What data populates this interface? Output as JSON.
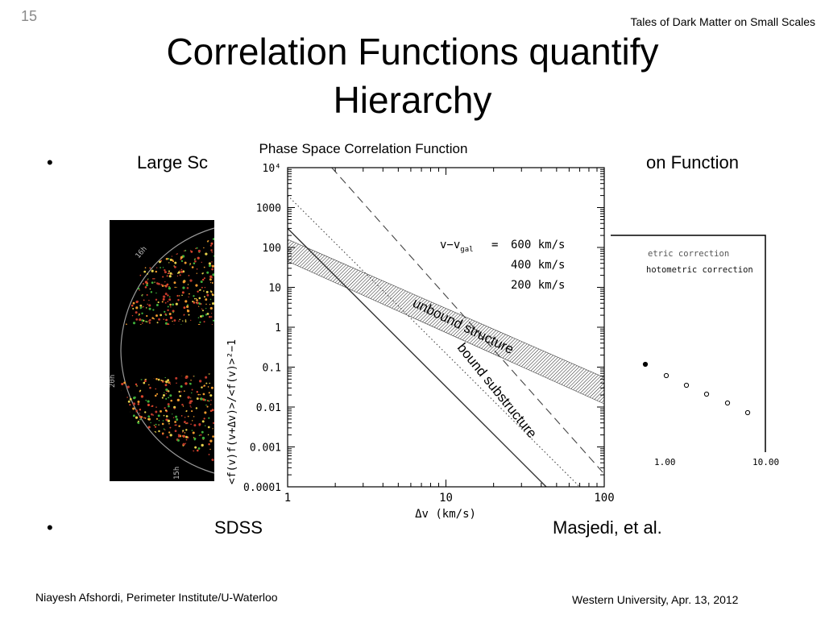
{
  "slide": {
    "number": "15",
    "header_right": "Tales of Dark Matter on Small Scales",
    "title": "Correlation Functions quantify Hierarchy",
    "bullets": [
      {
        "symbol": "•",
        "left_text": "Large Sc",
        "right_text": "on Function"
      },
      {
        "symbol": "•",
        "left_text": "SDSS",
        "right_text": "Masjedi, et al."
      }
    ],
    "footer_left": "Niayesh Afshordi, Perimeter Institute/U-Waterloo",
    "footer_right": "Western University, Apr. 13, 2012"
  },
  "background_images": {
    "survey_labels": [
      "16h",
      "20h",
      "15h"
    ],
    "right_plot": {
      "legend": [
        "etric correction",
        "hotometric correction"
      ],
      "x_tick_labels": [
        "1.00",
        "10.00"
      ]
    }
  },
  "chart_data": {
    "type": "line",
    "title": "Phase Space Correlation Function",
    "xlabel": "Δv (km/s)",
    "ylabel": "<f(v)f(v+Δv)>/<f(v)>²−1",
    "xscale": "log",
    "yscale": "log",
    "xlim": [
      1,
      100
    ],
    "ylim": [
      0.0001,
      10000
    ],
    "x_ticks": [
      {
        "value": 1,
        "label": "1"
      },
      {
        "value": 10,
        "label": "10"
      },
      {
        "value": 100,
        "label": "100"
      }
    ],
    "y_ticks": [
      {
        "value": 0.0001,
        "label": "0.0001"
      },
      {
        "value": 0.001,
        "label": "0.001"
      },
      {
        "value": 0.01,
        "label": "0.01"
      },
      {
        "value": 0.1,
        "label": "0.1"
      },
      {
        "value": 1,
        "label": "1"
      },
      {
        "value": 10,
        "label": "10"
      },
      {
        "value": 100,
        "label": "100"
      },
      {
        "value": 1000,
        "label": "1000"
      },
      {
        "value": 10000,
        "label": "10⁴"
      }
    ],
    "legend_title": "v−v",
    "legend_title_sub": "gal",
    "series": [
      {
        "name": "600 km/s",
        "style": "dashed",
        "x": [
          1.9,
          100
        ],
        "y": [
          10000,
          0.00021
        ]
      },
      {
        "name": "400 km/s",
        "style": "dotted",
        "x": [
          1,
          70
        ],
        "y": [
          2000,
          0.0001
        ]
      },
      {
        "name": "200 km/s",
        "style": "solid",
        "x": [
          1,
          43
        ],
        "y": [
          300,
          0.0001
        ]
      }
    ],
    "band": {
      "lower": {
        "x": [
          1,
          100
        ],
        "y": [
          45,
          0.012
        ]
      },
      "upper": {
        "x": [
          1,
          100
        ],
        "y": [
          160,
          0.055
        ]
      }
    },
    "annotations": [
      {
        "text": "unbound structure",
        "x": 12.5,
        "y": 0.85,
        "angle": 26
      },
      {
        "text": "bound substructure",
        "x": 20,
        "y": 0.022,
        "angle": 51
      }
    ]
  }
}
